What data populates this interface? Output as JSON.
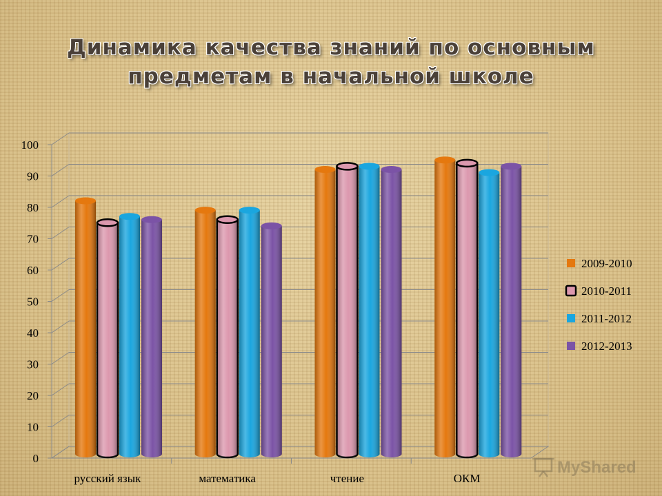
{
  "chart_data": {
    "type": "bar",
    "title": "Динамика качества знаний по основным предметам в начальной школе",
    "categories": [
      "русский язык",
      "математика",
      "чтение",
      "ОКМ"
    ],
    "series": [
      {
        "name": "2009-2010",
        "color": "#e5780e",
        "values": [
          81,
          78,
          91,
          94
        ]
      },
      {
        "name": "2010-2011",
        "color": "#dc98ae",
        "values": [
          74,
          75,
          92,
          93
        ]
      },
      {
        "name": "2011-2012",
        "color": "#1aa6df",
        "values": [
          76,
          78,
          92,
          90
        ]
      },
      {
        "name": "2012-2013",
        "color": "#7b53a6",
        "values": [
          75,
          73,
          91,
          92
        ]
      }
    ],
    "ylim": [
      0,
      100
    ],
    "yticks": [
      0,
      10,
      20,
      30,
      40,
      50,
      60,
      70,
      80,
      90,
      100
    ],
    "grid": true,
    "legend": "right"
  },
  "watermark": "MyShared"
}
